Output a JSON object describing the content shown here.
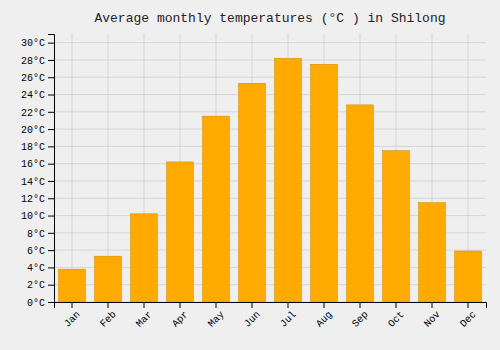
{
  "chart_data": {
    "type": "bar",
    "title": "Average monthly temperatures (°C ) in Shilong",
    "categories": [
      "Jan",
      "Feb",
      "Mar",
      "Apr",
      "May",
      "Jun",
      "Jul",
      "Aug",
      "Sep",
      "Oct",
      "Nov",
      "Dec"
    ],
    "values": [
      3.8,
      5.3,
      10.2,
      16.2,
      21.5,
      25.3,
      28.2,
      27.5,
      22.8,
      17.5,
      11.5,
      5.9
    ],
    "color": "#FFAA00",
    "ylim": [
      0,
      31
    ],
    "yticks": [
      {
        "value": 0,
        "label": "0°C"
      },
      {
        "value": 2,
        "label": "2°C"
      },
      {
        "value": 4,
        "label": "4°C"
      },
      {
        "value": 6,
        "label": "6°C"
      },
      {
        "value": 8,
        "label": "8°C"
      },
      {
        "value": 10,
        "label": "10°C"
      },
      {
        "value": 12,
        "label": "12°C"
      },
      {
        "value": 14,
        "label": "14°C"
      },
      {
        "value": 16,
        "label": "16°C"
      },
      {
        "value": 18,
        "label": "18°C"
      },
      {
        "value": 20,
        "label": "20°C"
      },
      {
        "value": 22,
        "label": "22°C"
      },
      {
        "value": 24,
        "label": "24°C"
      },
      {
        "value": 26,
        "label": "26°C"
      },
      {
        "value": 28,
        "label": "28°C"
      },
      {
        "value": 30,
        "label": "30°C"
      }
    ],
    "grid": true
  }
}
